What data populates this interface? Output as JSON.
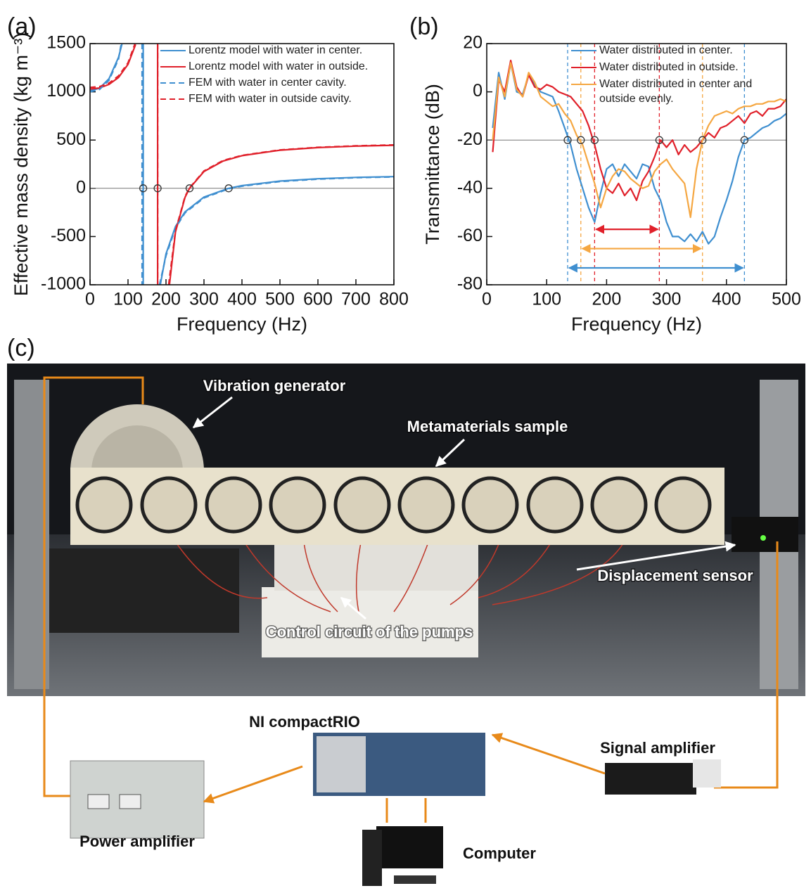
{
  "chart_data": [
    {
      "type": "line",
      "panel_label": "(a)",
      "xlabel": "Frequency (Hz)",
      "ylabel": "Effective mass density (kg m⁻³)",
      "xlim": [
        0,
        800
      ],
      "xticks": [
        0,
        100,
        200,
        300,
        400,
        500,
        600,
        700,
        800
      ],
      "ylim": [
        -1000,
        1500
      ],
      "yticks": [
        -1000,
        -500,
        0,
        500,
        1000,
        1500
      ],
      "hline": 0,
      "markers": {
        "y": 0,
        "x": [
          140,
          178,
          262,
          365
        ]
      },
      "series": [
        {
          "name": "Lorentz model with water in center.",
          "color": "#3f8fd0",
          "dashed": false,
          "x": [
            0,
            25,
            50,
            75,
            84,
            112,
            140,
            140,
            162,
            185,
            200,
            225,
            250,
            300,
            365,
            400,
            500,
            600,
            700,
            800
          ],
          "values": [
            1010,
            1038,
            1136,
            1357,
            1495,
            null,
            1500,
            -1000,
            null,
            -1000,
            -679,
            -396,
            -245,
            -91,
            0,
            28,
            75,
            99,
            113,
            121
          ]
        },
        {
          "name": "Lorentz model with water in outside.",
          "color": "#e0202a",
          "dashed": false,
          "x": [
            0,
            25,
            50,
            75,
            100,
            120,
            149,
            178,
            178,
            194,
            209,
            225,
            250,
            262,
            300,
            350,
            400,
            500,
            600,
            700,
            800
          ],
          "values": [
            1029,
            1040,
            1077,
            1149,
            1285,
            1491,
            null,
            1500,
            -1000,
            null,
            -1000,
            -452,
            -95,
            0,
            174,
            282,
            338,
            395,
            422,
            437,
            446
          ]
        },
        {
          "name": "FEM with water in center cavity.",
          "color": "#3f8fd0",
          "dashed": true,
          "x": [
            0,
            25,
            50,
            75,
            82,
            110,
            137,
            137,
            160,
            183,
            200,
            225,
            250,
            300,
            365,
            400,
            500,
            600,
            700,
            800
          ],
          "values": [
            1000,
            1025,
            1120,
            1340,
            1498,
            null,
            1500,
            -1000,
            null,
            -1000,
            -700,
            -410,
            -255,
            -100,
            -5,
            22,
            70,
            95,
            110,
            118
          ]
        },
        {
          "name": "FEM with water in outside cavity.",
          "color": "#e0202a",
          "dashed": true,
          "x": [
            0,
            25,
            50,
            75,
            100,
            118,
            148,
            178,
            178,
            193,
            207,
            225,
            250,
            262,
            300,
            350,
            400,
            500,
            600,
            700,
            800
          ],
          "values": [
            1045,
            1055,
            1090,
            1165,
            1300,
            1495,
            null,
            1500,
            -1000,
            null,
            -1000,
            -440,
            -85,
            5,
            180,
            288,
            342,
            398,
            425,
            440,
            450
          ]
        }
      ]
    },
    {
      "type": "line",
      "panel_label": "(b)",
      "xlabel": "Frequency (Hz)",
      "ylabel": "Transmittance (dB)",
      "xlim": [
        0,
        500
      ],
      "xticks": [
        0,
        100,
        200,
        300,
        400,
        500
      ],
      "ylim": [
        -80,
        20
      ],
      "yticks": [
        -80,
        -60,
        -40,
        -20,
        0,
        20
      ],
      "hline": -20,
      "markers": {
        "y": -20,
        "x": [
          135,
          157,
          180,
          288,
          360,
          430
        ]
      },
      "vlines": [
        {
          "x": 135,
          "color": "#3f8fd0"
        },
        {
          "x": 157,
          "color": "#f5a742"
        },
        {
          "x": 180,
          "color": "#e0202a"
        },
        {
          "x": 288,
          "color": "#e0202a"
        },
        {
          "x": 360,
          "color": "#f5a742"
        },
        {
          "x": 430,
          "color": "#3f8fd0"
        }
      ],
      "arrows": [
        {
          "from": 180,
          "to": 288,
          "y": -57,
          "color": "#e0202a"
        },
        {
          "from": 157,
          "to": 360,
          "y": -65,
          "color": "#f5a742"
        },
        {
          "from": 135,
          "to": 430,
          "y": -73,
          "color": "#3f8fd0"
        }
      ],
      "x": [
        10,
        20,
        30,
        40,
        50,
        60,
        70,
        80,
        90,
        100,
        110,
        120,
        130,
        140,
        150,
        160,
        170,
        180,
        190,
        200,
        210,
        220,
        230,
        240,
        250,
        260,
        270,
        280,
        290,
        300,
        310,
        320,
        330,
        340,
        350,
        360,
        370,
        380,
        390,
        400,
        410,
        420,
        430,
        440,
        450,
        460,
        470,
        480,
        490,
        500
      ],
      "series": [
        {
          "name": "Water distributed in center.",
          "color": "#3f8fd0",
          "values": [
            -15,
            8,
            -3,
            12,
            0,
            -1,
            7,
            3,
            0,
            -1,
            -2,
            -8,
            -15,
            -22,
            -32,
            -40,
            -48,
            -54,
            -42,
            -32,
            -30,
            -35,
            -30,
            -33,
            -36,
            -30,
            -31,
            -40,
            -45,
            -54,
            -60,
            -60,
            -62,
            -59,
            -62,
            -58,
            -63,
            -60,
            -52,
            -45,
            -37,
            -27,
            -20,
            -19,
            -17,
            -15,
            -14,
            -12,
            -11,
            -9
          ]
        },
        {
          "name": "Water distributed in outside.",
          "color": "#e0202a",
          "values": [
            -25,
            5,
            0,
            13,
            2,
            -2,
            7,
            2,
            1,
            3,
            2,
            0,
            -1,
            -2,
            -5,
            -8,
            -14,
            -22,
            -32,
            -40,
            -42,
            -38,
            -43,
            -40,
            -45,
            -37,
            -33,
            -27,
            -20,
            -23,
            -20,
            -26,
            -22,
            -25,
            -23,
            -20,
            -17,
            -19,
            -15,
            -14,
            -12,
            -10,
            -13,
            -9,
            -8,
            -10,
            -7,
            -7,
            -6,
            -3
          ]
        },
        {
          "name": "Water distributed in center and outside evenly.",
          "color": "#f5a742",
          "values": [
            -20,
            6,
            -2,
            12,
            1,
            -2,
            8,
            4,
            -2,
            -4,
            -6,
            -5,
            -9,
            -12,
            -18,
            -22,
            -30,
            -38,
            -48,
            -40,
            -35,
            -32,
            -33,
            -36,
            -38,
            -40,
            -39,
            -33,
            -30,
            -28,
            -32,
            -35,
            -38,
            -52,
            -32,
            -20,
            -14,
            -10,
            -9,
            -8,
            -9,
            -7,
            -6,
            -6,
            -5,
            -5,
            -4,
            -4,
            -3,
            -4
          ]
        }
      ]
    }
  ],
  "panel_c": {
    "label": "(c)",
    "labels": [
      "Vibration generator",
      "Metamaterials sample",
      "Displacement sensor",
      "Control circuit of the pumps",
      "NI compactRIO",
      "Signal amplifier",
      "Power amplifier",
      "Computer"
    ]
  }
}
